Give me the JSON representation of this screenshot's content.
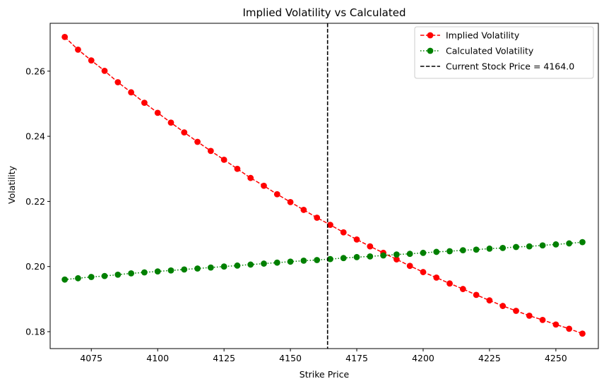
{
  "chart_data": {
    "type": "line",
    "title": "Implied Volatility vs Calculated",
    "xlabel": "Strike Price",
    "ylabel": "Volatility",
    "xlim": [
      4059.5,
      4266
    ],
    "ylim": [
      0.1748,
      0.2747
    ],
    "xticks": [
      4075,
      4100,
      4125,
      4150,
      4175,
      4200,
      4225,
      4250
    ],
    "yticks": [
      0.18,
      0.2,
      0.22,
      0.24,
      0.26
    ],
    "ytick_labels": [
      "0.18",
      "0.20",
      "0.22",
      "0.24",
      "0.26"
    ],
    "grid": false,
    "legend_position": "upper-right",
    "x": [
      4065,
      4070,
      4075,
      4080,
      4085,
      4090,
      4095,
      4100,
      4105,
      4110,
      4115,
      4120,
      4125,
      4130,
      4135,
      4140,
      4145,
      4150,
      4155,
      4160,
      4165,
      4170,
      4175,
      4180,
      4185,
      4190,
      4195,
      4200,
      4205,
      4210,
      4215,
      4220,
      4225,
      4230,
      4235,
      4240,
      4245,
      4250,
      4255,
      4260
    ],
    "series": [
      {
        "name": "Implied Volatility",
        "color": "#ff0000",
        "linestyle": "dashed",
        "values": [
          0.2705,
          0.2666,
          0.2633,
          0.2601,
          0.2566,
          0.2535,
          0.2503,
          0.2472,
          0.2442,
          0.2412,
          0.2383,
          0.2355,
          0.2328,
          0.23,
          0.2272,
          0.2248,
          0.2222,
          0.2198,
          0.2174,
          0.215,
          0.2128,
          0.2105,
          0.2083,
          0.2062,
          0.2042,
          0.2022,
          0.2002,
          0.1983,
          0.1966,
          0.1948,
          0.1931,
          0.1913,
          0.1896,
          0.1879,
          0.1864,
          0.1849,
          0.1836,
          0.1822,
          0.1809,
          0.1794
        ]
      },
      {
        "name": "Calculated Volatility",
        "color": "#008000",
        "linestyle": "dotted",
        "values": [
          0.196,
          0.1964,
          0.1968,
          0.1971,
          0.1975,
          0.1979,
          0.1982,
          0.1985,
          0.1988,
          0.1991,
          0.1994,
          0.1997,
          0.2,
          0.2003,
          0.2006,
          0.2009,
          0.2012,
          0.2015,
          0.2018,
          0.202,
          0.2023,
          0.2026,
          0.2029,
          0.2031,
          0.2034,
          0.2037,
          0.2039,
          0.2042,
          0.2045,
          0.2047,
          0.205,
          0.2052,
          0.2055,
          0.2057,
          0.206,
          0.2062,
          0.2065,
          0.2068,
          0.2071,
          0.2075
        ]
      }
    ],
    "vline": {
      "name": "Current Stock Price = 4164.0",
      "x": 4164.0,
      "color": "#000000",
      "linestyle": "dashed"
    }
  }
}
